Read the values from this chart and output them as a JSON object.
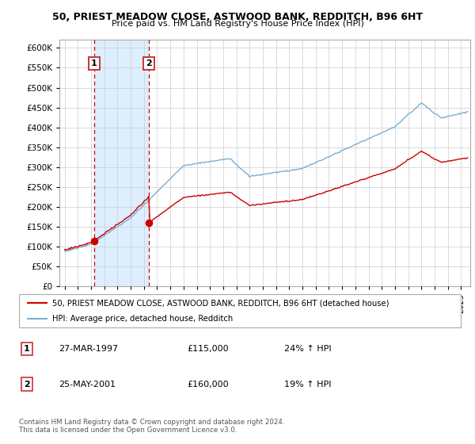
{
  "title1": "50, PRIEST MEADOW CLOSE, ASTWOOD BANK, REDDITCH, B96 6HT",
  "title2": "Price paid vs. HM Land Registry's House Price Index (HPI)",
  "legend_line1": "50, PRIEST MEADOW CLOSE, ASTWOOD BANK, REDDITCH, B96 6HT (detached house)",
  "legend_line2": "HPI: Average price, detached house, Redditch",
  "sale1_date": "27-MAR-1997",
  "sale1_price": 115000,
  "sale1_pct": "24% ↑ HPI",
  "sale2_date": "25-MAY-2001",
  "sale2_price": 160000,
  "sale2_pct": "19% ↑ HPI",
  "footnote": "Contains HM Land Registry data © Crown copyright and database right 2024.\nThis data is licensed under the Open Government Licence v3.0.",
  "ylim": [
    0,
    620000
  ],
  "yticks": [
    0,
    50000,
    100000,
    150000,
    200000,
    250000,
    300000,
    350000,
    400000,
    450000,
    500000,
    550000,
    600000
  ],
  "red_color": "#cc0000",
  "blue_color": "#7bafd4",
  "shade_color": "#ddeeff",
  "box_color": "#cc3333",
  "sale1_year_f": 1997.21,
  "sale2_year_f": 2001.37,
  "xlim_left": 1994.6,
  "xlim_right": 2025.7
}
